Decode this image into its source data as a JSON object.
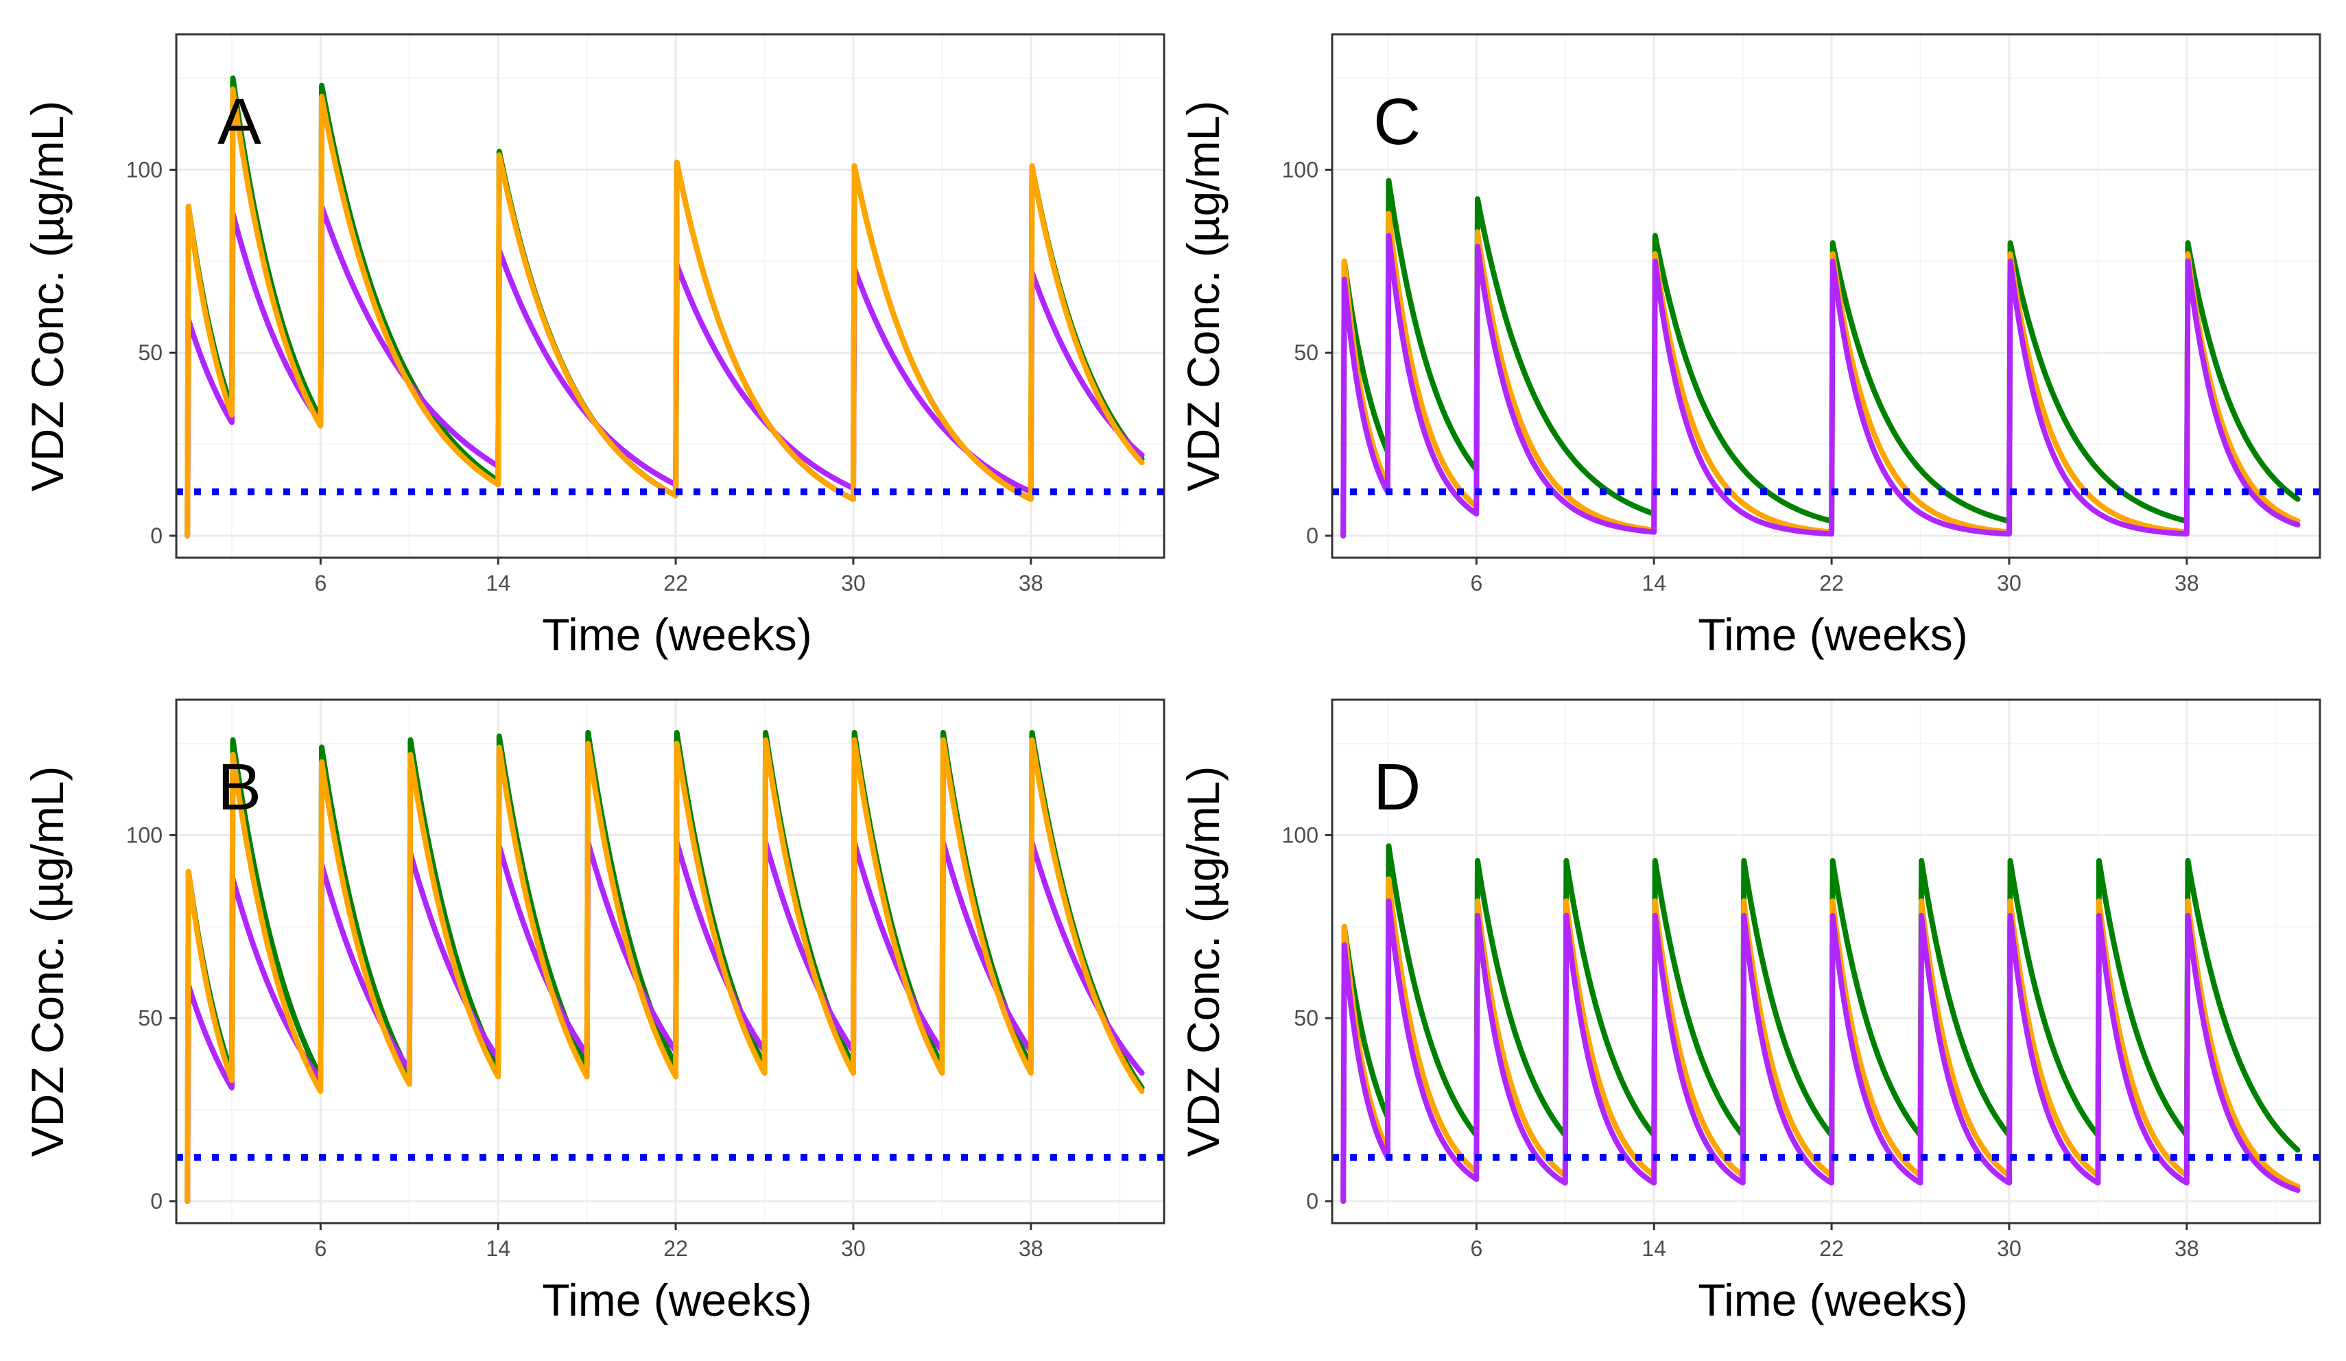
{
  "figure": {
    "series_colors": {
      "green": "#008000",
      "orange": "#FFA500",
      "purple": "#B026FF"
    },
    "threshold_color": "#0000FF",
    "grid_major_color": "#EBEBEB",
    "grid_minor_color": "#F5F5F5"
  },
  "chart_data": [
    {
      "type": "line",
      "panel_label": "A",
      "xlabel": "Time (weeks)",
      "ylabel": "VDZ Conc. (µg/mL)",
      "xlim": [
        -0.5,
        44
      ],
      "ylim": [
        -6,
        137
      ],
      "x_ticks": [
        6,
        14,
        22,
        30,
        38
      ],
      "y_ticks": [
        0,
        50,
        100
      ],
      "x_tick_labels": [
        "6",
        "14",
        "22",
        "30",
        "38"
      ],
      "y_tick_labels": [
        "0",
        "50",
        "100"
      ],
      "threshold": 12,
      "dose_times": [
        0,
        2,
        6,
        14,
        22,
        30,
        38
      ],
      "end_time": 43,
      "series": [
        {
          "name": "green",
          "color": "#008000",
          "peaks": [
            90,
            125,
            123,
            105,
            102,
            101,
            101
          ],
          "troughs": [
            35,
            32,
            15,
            11,
            10,
            10,
            21
          ]
        },
        {
          "name": "purple",
          "color": "#B026FF",
          "peaks": [
            59,
            88,
            90,
            78,
            74,
            73,
            72
          ],
          "troughs": [
            31,
            31,
            19,
            14,
            13,
            12,
            22
          ]
        },
        {
          "name": "orange",
          "color": "#FFA500",
          "peaks": [
            90,
            122,
            120,
            104,
            102,
            101,
            101
          ],
          "troughs": [
            33,
            30,
            14,
            11,
            10,
            10,
            20
          ]
        }
      ]
    },
    {
      "type": "line",
      "panel_label": "B",
      "xlabel": "Time (weeks)",
      "ylabel": "VDZ Conc. (µg/mL)",
      "xlim": [
        -0.5,
        44
      ],
      "ylim": [
        -6,
        137
      ],
      "x_ticks": [
        6,
        14,
        22,
        30,
        38
      ],
      "y_ticks": [
        0,
        50,
        100
      ],
      "x_tick_labels": [
        "6",
        "14",
        "22",
        "30",
        "38"
      ],
      "y_tick_labels": [
        "0",
        "50",
        "100"
      ],
      "threshold": 12,
      "dose_times": [
        0,
        2,
        6,
        10,
        14,
        18,
        22,
        26,
        30,
        34,
        38
      ],
      "end_time": 43,
      "series": [
        {
          "name": "green",
          "color": "#008000",
          "peaks": [
            90,
            126,
            124,
            126,
            127,
            128,
            128,
            128,
            128,
            128,
            128
          ],
          "troughs": [
            35,
            34,
            35,
            37,
            37,
            37,
            37,
            37,
            37,
            37,
            31
          ]
        },
        {
          "name": "purple",
          "color": "#B026FF",
          "peaks": [
            59,
            88,
            92,
            95,
            97,
            98,
            98,
            98,
            98,
            98,
            98
          ],
          "troughs": [
            31,
            33,
            36,
            39,
            40,
            41,
            41,
            41,
            41,
            41,
            35
          ]
        },
        {
          "name": "orange",
          "color": "#FFA500",
          "peaks": [
            90,
            122,
            120,
            122,
            124,
            125,
            125,
            126,
            126,
            126,
            126
          ],
          "troughs": [
            33,
            30,
            32,
            34,
            34,
            34,
            35,
            35,
            35,
            35,
            30
          ]
        }
      ]
    },
    {
      "type": "line",
      "panel_label": "C",
      "xlabel": "Time (weeks)",
      "ylabel": "VDZ Conc. (µg/mL)",
      "xlim": [
        -0.5,
        44
      ],
      "ylim": [
        -6,
        137
      ],
      "x_ticks": [
        6,
        14,
        22,
        30,
        38
      ],
      "y_ticks": [
        0,
        50,
        100
      ],
      "x_tick_labels": [
        "6",
        "14",
        "22",
        "30",
        "38"
      ],
      "y_tick_labels": [
        "0",
        "50",
        "100"
      ],
      "threshold": 12,
      "dose_times": [
        0,
        2,
        6,
        14,
        22,
        30,
        38
      ],
      "end_time": 43,
      "series": [
        {
          "name": "green",
          "color": "#008000",
          "peaks": [
            75,
            97,
            92,
            82,
            80,
            80,
            80
          ],
          "troughs": [
            23,
            18,
            6,
            4,
            4,
            4,
            10
          ]
        },
        {
          "name": "orange",
          "color": "#FFA500",
          "peaks": [
            75,
            88,
            83,
            77,
            77,
            77,
            77
          ],
          "troughs": [
            14,
            8,
            1.5,
            1,
            1,
            1,
            4
          ]
        },
        {
          "name": "purple",
          "color": "#B026FF",
          "peaks": [
            70,
            82,
            79,
            75,
            75,
            75,
            75
          ],
          "troughs": [
            12,
            6,
            1,
            0.5,
            0.5,
            0.5,
            3
          ]
        }
      ]
    },
    {
      "type": "line",
      "panel_label": "D",
      "xlabel": "Time (weeks)",
      "ylabel": "VDZ Conc. (µg/mL)",
      "xlim": [
        -0.5,
        44
      ],
      "ylim": [
        -6,
        137
      ],
      "x_ticks": [
        6,
        14,
        22,
        30,
        38
      ],
      "y_ticks": [
        0,
        50,
        100
      ],
      "x_tick_labels": [
        "6",
        "14",
        "22",
        "30",
        "38"
      ],
      "y_tick_labels": [
        "0",
        "50",
        "100"
      ],
      "threshold": 12,
      "dose_times": [
        0,
        2,
        6,
        10,
        14,
        18,
        22,
        26,
        30,
        34,
        38
      ],
      "end_time": 43,
      "series": [
        {
          "name": "green",
          "color": "#008000",
          "peaks": [
            75,
            97,
            93,
            93,
            93,
            93,
            93,
            93,
            93,
            93,
            93
          ],
          "troughs": [
            23,
            18,
            18,
            18,
            18,
            18,
            18,
            18,
            18,
            18,
            14
          ]
        },
        {
          "name": "orange",
          "color": "#FFA500",
          "peaks": [
            75,
            88,
            82,
            82,
            82,
            82,
            82,
            82,
            82,
            82,
            82
          ],
          "troughs": [
            14,
            8,
            7,
            7,
            7,
            7,
            7,
            7,
            7,
            7,
            4
          ]
        },
        {
          "name": "purple",
          "color": "#B026FF",
          "peaks": [
            70,
            82,
            78,
            78,
            78,
            78,
            78,
            78,
            78,
            78,
            78
          ],
          "troughs": [
            12,
            6,
            5,
            5,
            5,
            5,
            5,
            5,
            5,
            5,
            3
          ]
        }
      ]
    }
  ]
}
